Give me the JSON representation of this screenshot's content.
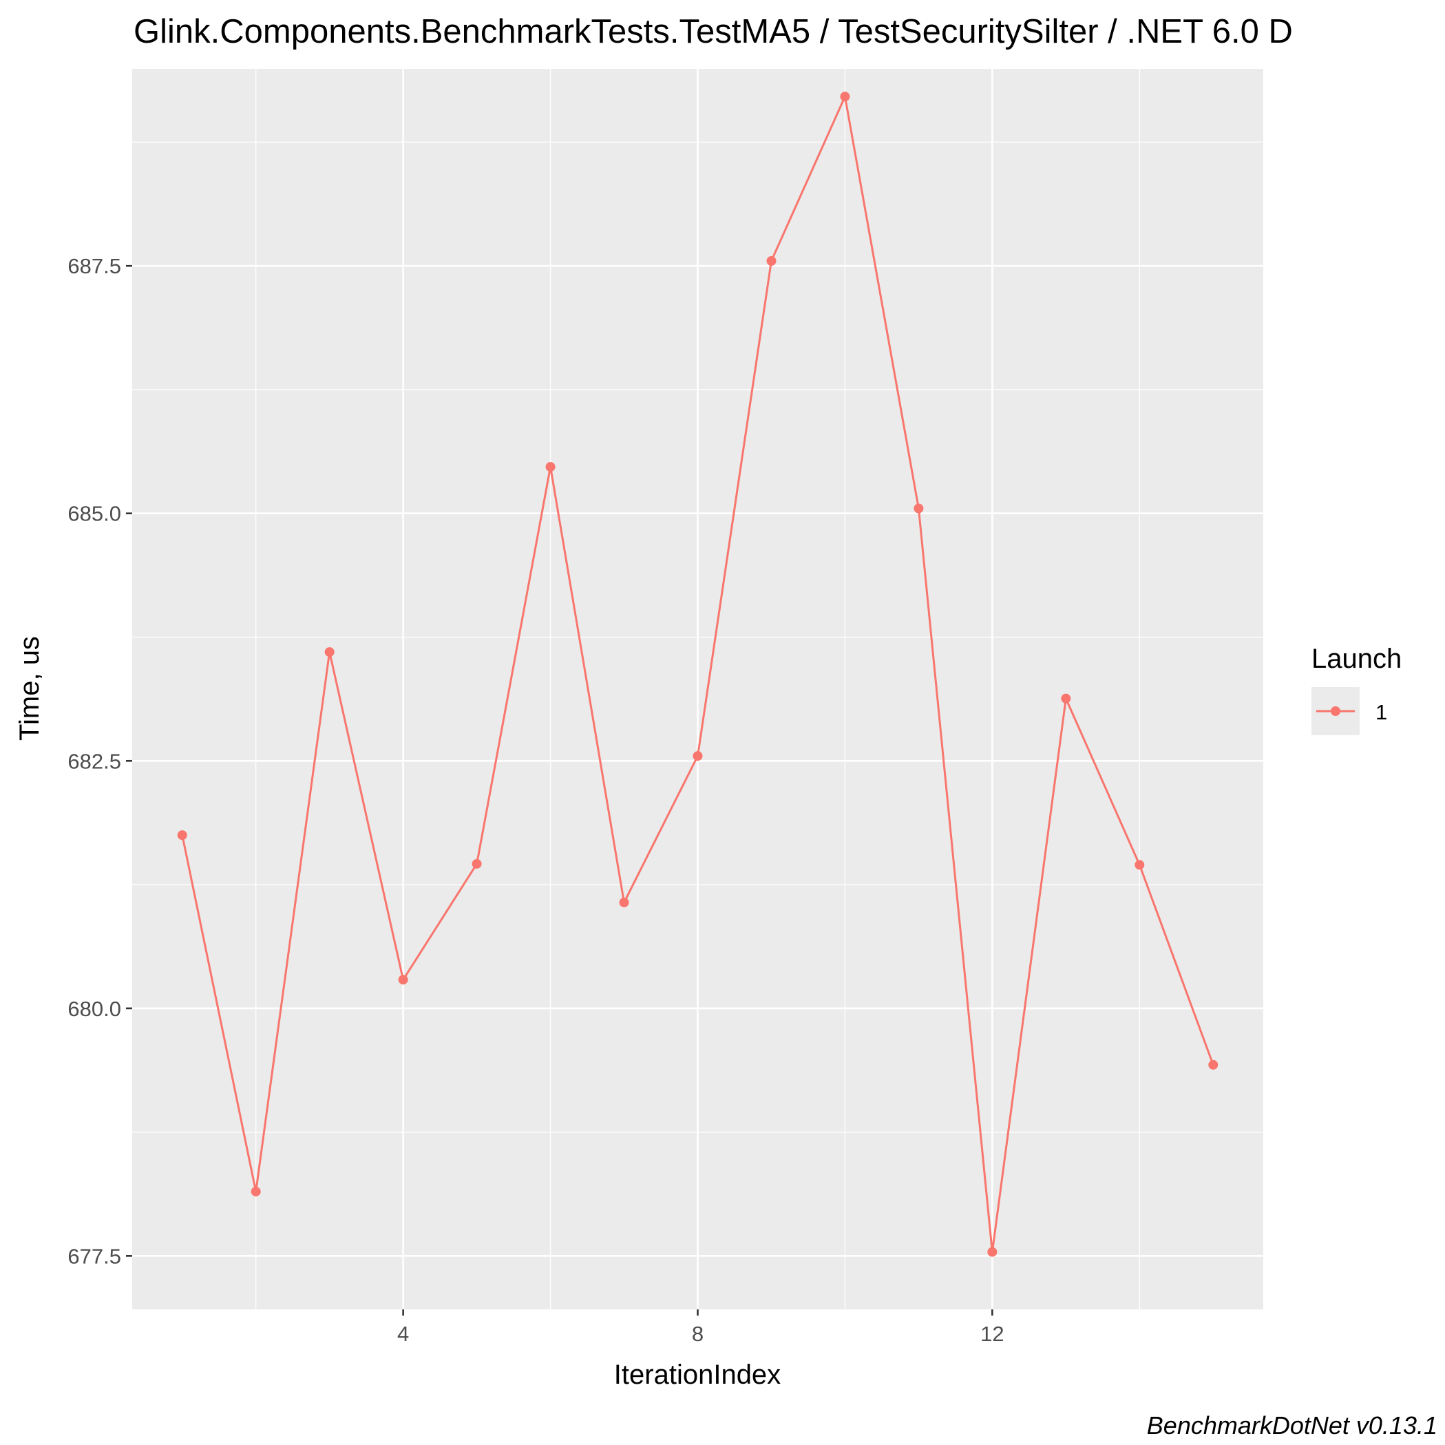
{
  "chart_data": {
    "type": "line",
    "title": "Glink.Components.BenchmarkTests.TestMA5 / TestSecuritySilter / .NET 6.0 D",
    "xlabel": "IterationIndex",
    "ylabel": "Time, us",
    "caption": "BenchmarkDotNet v0.13.1",
    "x_ticks": [
      4,
      8,
      12
    ],
    "x_tick_labels": [
      "4",
      "8",
      "12"
    ],
    "y_ticks": [
      677.5,
      680.0,
      682.5,
      685.0,
      687.5
    ],
    "y_tick_labels": [
      "677.5",
      "680.0",
      "682.5",
      "685.0",
      "687.5"
    ],
    "xlim": [
      0.32,
      15.68
    ],
    "ylim": [
      676.96,
      689.49
    ],
    "grid": true,
    "legend": {
      "title": "Launch",
      "position": "right",
      "entries": [
        "1"
      ]
    },
    "series": [
      {
        "name": "1",
        "color": "#F8766D",
        "x": [
          1,
          2,
          3,
          4,
          5,
          6,
          7,
          8,
          9,
          10,
          11,
          12,
          13,
          14,
          15
        ],
        "y": [
          681.75,
          678.15,
          683.6,
          680.29,
          681.46,
          685.47,
          681.07,
          682.55,
          687.55,
          689.21,
          685.05,
          677.54,
          683.13,
          681.45,
          679.43
        ]
      }
    ],
    "colors": {
      "panel_background": "#EBEBEB",
      "grid_line": "#FFFFFF",
      "tick_text": "#4D4D4D",
      "tick_mark": "#333333"
    }
  }
}
